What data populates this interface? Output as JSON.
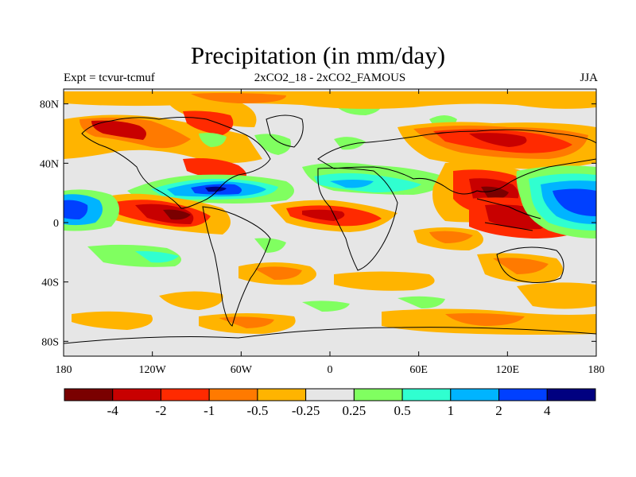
{
  "title": "Precipitation (in mm/day)",
  "subtitle_left": "Expt = tcvur-tcmuf",
  "subtitle_center": "2xCO2_18 - 2xCO2_FAMOUS",
  "subtitle_right": "JJA",
  "map": {
    "projection": "cylindrical-equidistant",
    "lon_range": [
      -180,
      180
    ],
    "lat_range": [
      -90,
      90
    ],
    "background_color": "#e6e6e6",
    "lat_ticks": [
      {
        "value": 80,
        "label": "80N"
      },
      {
        "value": 40,
        "label": "40N"
      },
      {
        "value": 0,
        "label": "0"
      },
      {
        "value": -40,
        "label": "40S"
      },
      {
        "value": -80,
        "label": "80S"
      }
    ],
    "lon_ticks": [
      {
        "value": -180,
        "label": "180"
      },
      {
        "value": -120,
        "label": "120W"
      },
      {
        "value": -60,
        "label": "60W"
      },
      {
        "value": 0,
        "label": "0"
      },
      {
        "value": 60,
        "label": "60E"
      },
      {
        "value": 120,
        "label": "120E"
      },
      {
        "value": 180,
        "label": "180"
      }
    ]
  },
  "colorbar": {
    "colors": [
      "#7a0000",
      "#c80000",
      "#ff2a00",
      "#ff7a00",
      "#ffb400",
      "#e6e6e6",
      "#80ff60",
      "#30ffd0",
      "#00b4ff",
      "#0040ff",
      "#000080"
    ],
    "labels": [
      "-4",
      "-2",
      "-1",
      "-0.5",
      "-0.25",
      "0.25",
      "0.5",
      "1",
      "2",
      "4"
    ]
  },
  "chart_data": {
    "type": "heatmap",
    "title": "Precipitation (in mm/day)",
    "subtitle": "2xCO2_18 - 2xCO2_FAMOUS",
    "season": "JJA",
    "experiment": "Expt = tcvur-tcmuf",
    "contour_levels": [
      -4,
      -2,
      -1,
      -0.5,
      -0.25,
      0.25,
      0.5,
      1,
      2,
      4
    ],
    "features": [
      {
        "lon": [
          -130,
          -85
        ],
        "lat": [
          0,
          20
        ],
        "value": -4
      },
      {
        "lon": [
          -110,
          -60
        ],
        "lat": [
          15,
          35
        ],
        "value": -1
      },
      {
        "lon": [
          -90,
          -55
        ],
        "lat": [
          15,
          30
        ],
        "value": 2
      },
      {
        "lon": [
          -180,
          -155
        ],
        "lat": [
          -2,
          15
        ],
        "value": 2
      },
      {
        "lon": [
          -170,
          -150
        ],
        "lat": [
          55,
          72
        ],
        "value": -2
      },
      {
        "lon": [
          -105,
          -85
        ],
        "lat": [
          55,
          70
        ],
        "value": -1
      },
      {
        "lon": [
          -20,
          25
        ],
        "lat": [
          15,
          28
        ],
        "value": 1
      },
      {
        "lon": [
          -25,
          40
        ],
        "lat": [
          0,
          12
        ],
        "value": -1
      },
      {
        "lon": [
          50,
          160
        ],
        "lat": [
          55,
          70
        ],
        "value": -2
      },
      {
        "lon": [
          90,
          125
        ],
        "lat": [
          -5,
          30
        ],
        "value": -2
      },
      {
        "lon": [
          140,
          180
        ],
        "lat": [
          0,
          25
        ],
        "value": 2
      },
      {
        "lon": [
          -100,
          -50
        ],
        "lat": [
          -25,
          -15
        ],
        "value": 0.5
      },
      {
        "lon": [
          -40,
          10
        ],
        "lat": [
          -45,
          -35
        ],
        "value": -0.5
      },
      {
        "lon": [
          0,
          60
        ],
        "lat": [
          -45,
          -38
        ],
        "value": -0.5
      },
      {
        "lon": [
          -95,
          -30
        ],
        "lat": [
          -75,
          -65
        ],
        "value": -0.5
      },
      {
        "lon": [
          100,
          180
        ],
        "lat": [
          -75,
          -60
        ],
        "value": -0.5
      }
    ]
  }
}
